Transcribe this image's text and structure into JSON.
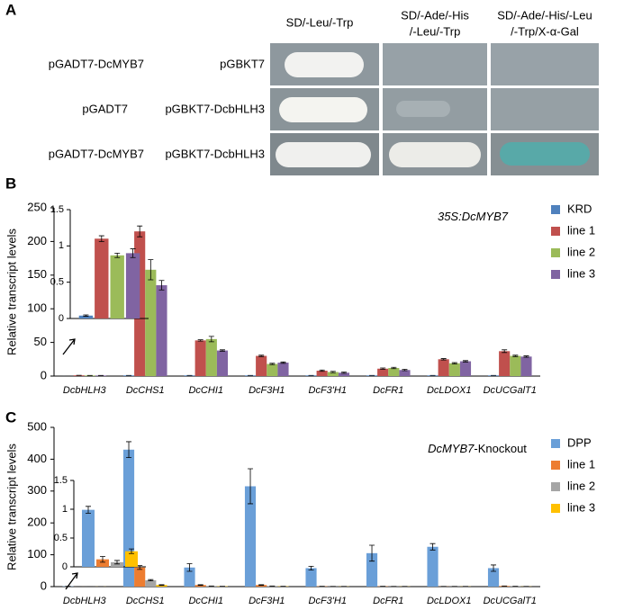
{
  "panel_a": {
    "label": "A",
    "columns": [
      "SD/-Leu/-Trp",
      "SD/-Ade/-His",
      "/-Leu/-Trp",
      "SD/-Ade/-His/-Leu",
      "/-Trp/X-α-Gal"
    ],
    "rows": [
      [
        "pGADT7-DcMYB7",
        "pGBKT7"
      ],
      [
        "pGADT7",
        "pGBKT7-DcbHLH3"
      ],
      [
        "pGADT7-DcMYB7",
        "pGBKT7-DcbHLH3"
      ]
    ]
  },
  "chart_data": [
    {
      "type": "bar",
      "label": "B",
      "annotation": [
        "35S:DcMYB7"
      ],
      "ylabel": "Relative transcript levels",
      "categories": [
        "DcbHLH3",
        "DcCHS1",
        "DcCHI1",
        "DcF3H1",
        "DcF3'H1",
        "DcFR1",
        "DcLDOX1",
        "DcUCGalT1"
      ],
      "series": [
        {
          "name": "KRD",
          "color": "#4f81bd",
          "values": [
            0.04,
            1,
            1,
            1,
            1,
            1,
            1,
            1
          ],
          "errors": [
            0.01,
            0,
            0,
            0,
            0,
            0,
            0,
            0
          ]
        },
        {
          "name": "line 1",
          "color": "#c0504d",
          "values": [
            1.1,
            215,
            53,
            30,
            8,
            11,
            25,
            37
          ],
          "errors": [
            0.04,
            8,
            1,
            1,
            1,
            1,
            1,
            2
          ]
        },
        {
          "name": "line 2",
          "color": "#9bbb59",
          "values": [
            0.87,
            158,
            55,
            18,
            6,
            12,
            19,
            30
          ],
          "errors": [
            0.03,
            15,
            4,
            1,
            1,
            1,
            1,
            1
          ]
        },
        {
          "name": "line 3",
          "color": "#8064a2",
          "values": [
            0.9,
            135,
            38,
            20,
            5,
            9,
            22,
            29
          ],
          "errors": [
            0.06,
            7,
            1,
            1,
            1,
            1,
            1,
            1
          ]
        }
      ],
      "ylim": [
        0,
        250
      ],
      "yticks": [
        0,
        50,
        100,
        150,
        200,
        250
      ],
      "inset": {
        "ylim": [
          0,
          1.5
        ],
        "yticks": [
          0,
          0.5,
          1,
          1.5
        ]
      }
    },
    {
      "type": "bar",
      "label": "C",
      "annotation": [
        "DcMYB7",
        "-Knockout"
      ],
      "ylabel": "Relative transcript levels",
      "categories": [
        "DcbHLH3",
        "DcCHS1",
        "DcCHI1",
        "DcF3H1",
        "DcF3'H1",
        "DcFR1",
        "DcLDOX1",
        "DcUCGalT1"
      ],
      "series": [
        {
          "name": "DPP",
          "color": "#6a9fd8",
          "values": [
            0.99,
            430,
            60,
            315,
            58,
            105,
            125,
            58
          ],
          "errors": [
            0.06,
            25,
            12,
            55,
            6,
            25,
            10,
            10
          ]
        },
        {
          "name": "line 1",
          "color": "#ed7d31",
          "values": [
            0.13,
            60,
            5,
            5,
            1,
            1,
            0.5,
            2
          ],
          "errors": [
            0.05,
            6,
            1,
            1,
            0,
            0,
            0,
            0
          ]
        },
        {
          "name": "line 2",
          "color": "#a5a5a5",
          "values": [
            0.08,
            20,
            2,
            2,
            0.5,
            0.5,
            0.5,
            1
          ],
          "errors": [
            0.03,
            2,
            0,
            0,
            0,
            0,
            0,
            0
          ]
        },
        {
          "name": "line 3",
          "color": "#ffc000",
          "values": [
            0.27,
            5,
            1,
            1,
            0.5,
            0.5,
            0.5,
            0.5
          ],
          "errors": [
            0.04,
            1,
            0,
            0,
            0,
            0,
            0,
            0
          ]
        }
      ],
      "ylim": [
        0,
        500
      ],
      "yticks": [
        0,
        100,
        200,
        300,
        400,
        500
      ],
      "inset": {
        "ylim": [
          0,
          1.5
        ],
        "yticks": [
          0,
          0.5,
          1,
          1.5
        ]
      }
    }
  ]
}
